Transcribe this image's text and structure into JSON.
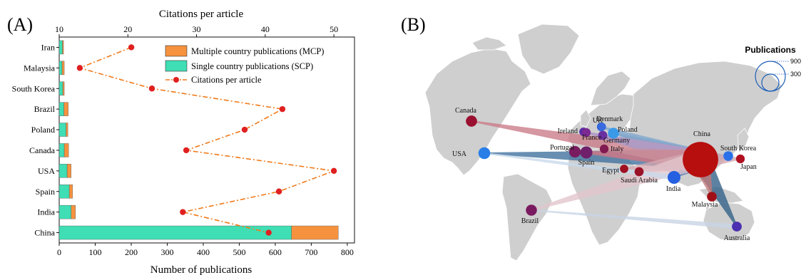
{
  "panel_a": {
    "panel_label": "(A)",
    "top_axis_title": "Citations per article",
    "bottom_axis_title": "Number of publications"
  },
  "panel_b": {
    "panel_label": "(B)",
    "size_legend_title": "Publications",
    "size_legend_values": [
      "900",
      "300"
    ]
  },
  "chart_data": [
    {
      "type": "bar",
      "orientation": "horizontal",
      "stacked": true,
      "categories": [
        "Iran",
        "Malaysia",
        "South Korea",
        "Brazil",
        "Poland",
        "Canada",
        "USA",
        "Spain",
        "India",
        "China"
      ],
      "series": [
        {
          "name": "Single country publications (SCP)",
          "color": "#3fdeb4",
          "values": [
            9,
            8,
            10,
            13,
            19,
            14,
            22,
            28,
            33,
            645
          ]
        },
        {
          "name": "Multiple country publications (MCP)",
          "color": "#f6923e",
          "values": [
            3,
            6,
            4,
            12,
            5,
            12,
            11,
            9,
            12,
            130
          ]
        },
        {
          "name": "Citations per article",
          "color": "#e02020",
          "axis": "top",
          "values": [
            20.5,
            13.0,
            23.5,
            42.5,
            37.0,
            28.5,
            50.0,
            42.0,
            28.0,
            40.5
          ]
        }
      ],
      "xlabel": "Number of publications",
      "xlim": [
        0,
        820
      ],
      "xticks": [
        0,
        100,
        200,
        300,
        400,
        500,
        600,
        700,
        800
      ],
      "x2label": "Citations per article",
      "x2lim": [
        10,
        53
      ],
      "x2ticks": [
        10,
        20,
        30,
        40,
        50
      ],
      "legend_position": "top-right",
      "grid": false
    },
    {
      "type": "map",
      "countries": [
        {
          "name": "China",
          "color": "#b70e0e",
          "publications": 775
        },
        {
          "name": "Canada",
          "color": "#9a1030",
          "publications": 26
        },
        {
          "name": "USA",
          "color": "#2a7ee8",
          "publications": 33
        },
        {
          "name": "UK",
          "color": "#2461d6",
          "publications": 8
        },
        {
          "name": "Ireland",
          "color": "#5a2aa8",
          "publications": 6
        },
        {
          "name": "Denmark",
          "color": "#3a6ae0",
          "publications": 5
        },
        {
          "name": "France",
          "color": "#7a2a90",
          "publications": 8
        },
        {
          "name": "Poland",
          "color": "#3a9ae8",
          "publications": 24
        },
        {
          "name": "Germany",
          "color": "#6a30a0",
          "publications": 10
        },
        {
          "name": "Portugal",
          "color": "#7a1c60",
          "publications": 30
        },
        {
          "name": "Spain",
          "color": "#70206a",
          "publications": 37
        },
        {
          "name": "Italy",
          "color": "#801a50",
          "publications": 8
        },
        {
          "name": "Egypt",
          "color": "#a01020",
          "publications": 6
        },
        {
          "name": "Saudi Arabia",
          "color": "#9a1228",
          "publications": 10
        },
        {
          "name": "India",
          "color": "#2560e0",
          "publications": 45
        },
        {
          "name": "South Korea",
          "color": "#2a70e8",
          "publications": 14
        },
        {
          "name": "Japan",
          "color": "#b01020",
          "publications": 8
        },
        {
          "name": "Malaysia",
          "color": "#a01018",
          "publications": 14
        },
        {
          "name": "Brazil",
          "color": "#7a1a60",
          "publications": 25
        },
        {
          "name": "Australia",
          "color": "#4a30b0",
          "publications": 15
        }
      ],
      "links": [
        {
          "from": "USA",
          "to": "China",
          "color": "#3d6f9c"
        },
        {
          "from": "Canada",
          "to": "China",
          "color": "#c97a86"
        },
        {
          "from": "UK",
          "to": "China",
          "color": "#7fa5c9"
        },
        {
          "from": "Denmark",
          "to": "China",
          "color": "#8fb0d0"
        },
        {
          "from": "Poland",
          "to": "China",
          "color": "#7fa5c9"
        },
        {
          "from": "Germany",
          "to": "China",
          "color": "#8fb0d0"
        },
        {
          "from": "France",
          "to": "China",
          "color": "#a690b8"
        },
        {
          "from": "Ireland",
          "to": "China",
          "color": "#b39cc4"
        },
        {
          "from": "Portugal",
          "to": "China",
          "color": "#c27a8a"
        },
        {
          "from": "Spain",
          "to": "China",
          "color": "#c27a8a"
        },
        {
          "from": "Italy",
          "to": "China",
          "color": "#c9909c"
        },
        {
          "from": "India",
          "to": "China",
          "color": "#4d79b5"
        },
        {
          "from": "Australia",
          "to": "China",
          "color": "#2f5f86"
        },
        {
          "from": "Malaysia",
          "to": "China",
          "color": "#c27a7a"
        },
        {
          "from": "Saudi Arabia",
          "to": "China",
          "color": "#d4a0a8"
        },
        {
          "from": "Egypt",
          "to": "China",
          "color": "#d4a8b0"
        },
        {
          "from": "South Korea",
          "to": "China",
          "color": "#8fb0d0"
        },
        {
          "from": "Japan",
          "to": "China",
          "color": "#d4a8b0"
        },
        {
          "from": "Brazil",
          "to": "China",
          "color": "#e2c4cc"
        },
        {
          "from": "Brazil",
          "to": "Australia",
          "color": "#c8d4e4"
        },
        {
          "from": "USA",
          "to": "India",
          "color": "#c8d8ea"
        }
      ]
    }
  ]
}
